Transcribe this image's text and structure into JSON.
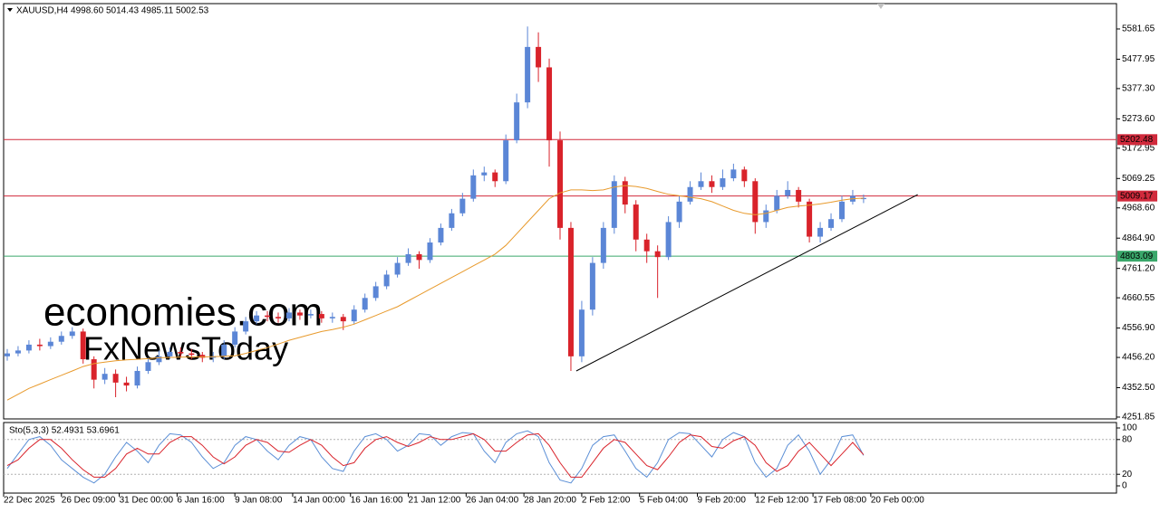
{
  "chart_data": {
    "type": "candlestick",
    "title": "XAUUSD,H4  4998.60 5014.43 4985.11 5002.53",
    "x": [
      1,
      4,
      7,
      10,
      13,
      16,
      19,
      22,
      25,
      28,
      31,
      34,
      37,
      40,
      43,
      46,
      49,
      52,
      55,
      58,
      61,
      64,
      67,
      70,
      73,
      76,
      79,
      82,
      85,
      88,
      91,
      94,
      97,
      100,
      103,
      106,
      109,
      112,
      115,
      118,
      121,
      124,
      127,
      130,
      133,
      136,
      139,
      142,
      145,
      148,
      151,
      154,
      157,
      160,
      163,
      166,
      169,
      172,
      175,
      178,
      181,
      184,
      187,
      190,
      193,
      196,
      199,
      202,
      205,
      208,
      211,
      214,
      217,
      220,
      223,
      226,
      229,
      232,
      235,
      238
    ],
    "open": [
      4460,
      4470,
      4480,
      4500,
      4495,
      4510,
      4530,
      4545,
      4450,
      4380,
      4400,
      4370,
      4360,
      4410,
      4440,
      4460,
      4475,
      4470,
      4465,
      4455,
      4460,
      4500,
      4545,
      4580,
      4600,
      4595,
      4590,
      4610,
      4600,
      4605,
      4590,
      4595,
      4580,
      4620,
      4660,
      4700,
      4740,
      4780,
      4810,
      4790,
      4850,
      4900,
      4950,
      5000,
      5080,
      5090,
      5060,
      5200,
      5330,
      5520,
      5450,
      5200,
      4900,
      4460,
      4620,
      4780,
      4900,
      5060,
      4980,
      4860,
      4820,
      4800,
      4920,
      4990,
      5040,
      5060,
      5040,
      5070,
      5100,
      5060,
      4920,
      4960,
      5010,
      5030,
      4990,
      4870,
      4900,
      4930,
      4990,
      4998.6
    ],
    "high": [
      4485,
      4495,
      4515,
      4520,
      4525,
      4545,
      4560,
      4555,
      4460,
      4420,
      4415,
      4390,
      4425,
      4455,
      4480,
      4490,
      4490,
      4485,
      4475,
      4475,
      4515,
      4560,
      4595,
      4615,
      4615,
      4610,
      4625,
      4620,
      4620,
      4615,
      4610,
      4605,
      4635,
      4675,
      4715,
      4755,
      4800,
      4830,
      4820,
      4865,
      4915,
      4965,
      5020,
      5100,
      5110,
      5100,
      5220,
      5360,
      5590,
      5570,
      5480,
      5230,
      4920,
      4650,
      4800,
      4920,
      5080,
      5075,
      4995,
      4880,
      4840,
      4940,
      5010,
      5060,
      5090,
      5080,
      5100,
      5120,
      5110,
      5070,
      4980,
      5030,
      5060,
      5040,
      5000,
      4920,
      4950,
      5010,
      5030,
      5014.43
    ],
    "low": [
      4445,
      4460,
      4470,
      4480,
      4485,
      4500,
      4520,
      4435,
      4350,
      4365,
      4320,
      4340,
      4350,
      4400,
      4430,
      4450,
      4455,
      4450,
      4440,
      4440,
      4450,
      4490,
      4535,
      4570,
      4580,
      4575,
      4580,
      4585,
      4590,
      4575,
      4575,
      4550,
      4570,
      4610,
      4650,
      4690,
      4730,
      4770,
      4760,
      4780,
      4840,
      4890,
      4940,
      4990,
      5060,
      5040,
      5050,
      5190,
      5310,
      5400,
      5110,
      4860,
      4410,
      4440,
      4600,
      4760,
      4880,
      4950,
      4820,
      4780,
      4660,
      4790,
      4900,
      4980,
      5030,
      5020,
      5030,
      5060,
      5040,
      4880,
      4900,
      4950,
      5000,
      4970,
      4850,
      4850,
      4890,
      4920,
      4980,
      4985.11
    ],
    "close": [
      4470,
      4480,
      4500,
      4495,
      4510,
      4530,
      4545,
      4450,
      4380,
      4400,
      4370,
      4360,
      4410,
      4440,
      4460,
      4475,
      4470,
      4465,
      4455,
      4460,
      4500,
      4545,
      4580,
      4600,
      4595,
      4590,
      4610,
      4600,
      4605,
      4590,
      4595,
      4580,
      4620,
      4660,
      4700,
      4740,
      4780,
      4810,
      4790,
      4850,
      4900,
      4950,
      5000,
      5080,
      5090,
      5060,
      5200,
      5330,
      5520,
      5450,
      5200,
      4900,
      4460,
      4620,
      4780,
      4900,
      5060,
      4980,
      4860,
      4820,
      4800,
      4920,
      4990,
      5040,
      5060,
      5040,
      5070,
      5100,
      5060,
      4920,
      4960,
      5010,
      5030,
      4990,
      4870,
      4900,
      4930,
      4990,
      5010,
      5002.53
    ],
    "up_color": "#5b86d6",
    "down_color": "#d9232b",
    "ma": {
      "color": "#e89a2c",
      "values": [
        4310,
        4330,
        4350,
        4365,
        4380,
        4395,
        4410,
        4425,
        4435,
        4440,
        4445,
        4448,
        4450,
        4452,
        4455,
        4456,
        4457,
        4458,
        4458,
        4459,
        4460,
        4462,
        4470,
        4480,
        4490,
        4502,
        4515,
        4525,
        4535,
        4545,
        4552,
        4560,
        4570,
        4585,
        4600,
        4615,
        4630,
        4650,
        4670,
        4690,
        4710,
        4730,
        4750,
        4770,
        4790,
        4810,
        4840,
        4880,
        4920,
        4960,
        5000,
        5020,
        5030,
        5030,
        5028,
        5030,
        5040,
        5045,
        5042,
        5035,
        5025,
        5015,
        5010,
        5005,
        5000,
        4990,
        4975,
        4960,
        4950,
        4945,
        4950,
        4960,
        4970,
        4975,
        4978,
        4982,
        4988,
        4995,
        5000,
        5002
      ]
    },
    "levels": [
      {
        "value": 5202.48,
        "color": "#d12a3c"
      },
      {
        "value": 5009.17,
        "color": "#d12a3c"
      },
      {
        "value": 4803.09,
        "color": "#3aa86b"
      }
    ],
    "trendline": {
      "x": [
        158.5,
        253
      ],
      "y": [
        4410,
        5014
      ],
      "color": "#000000"
    },
    "xlim": [
      0,
      308
    ],
    "xticks": [
      {
        "value": 0,
        "label": "22 Dec 2025"
      },
      {
        "value": 16,
        "label": "26 Dec 09:00"
      },
      {
        "value": 32,
        "label": "31 Dec 00:00"
      },
      {
        "value": 48,
        "label": "6 Jan 16:00"
      },
      {
        "value": 64,
        "label": "9 Jan 08:00"
      },
      {
        "value": 80,
        "label": "14 Jan 00:00"
      },
      {
        "value": 96,
        "label": "16 Jan 16:00"
      },
      {
        "value": 112,
        "label": "21 Jan 12:00"
      },
      {
        "value": 128,
        "label": "26 Jan 04:00"
      },
      {
        "value": 144,
        "label": "28 Jan 20:00"
      },
      {
        "value": 160,
        "label": "2 Feb 12:00"
      },
      {
        "value": 176,
        "label": "5 Feb 04:00"
      },
      {
        "value": 192,
        "label": "9 Feb 20:00"
      },
      {
        "value": 208,
        "label": "12 Feb 12:00"
      },
      {
        "value": 224,
        "label": "17 Feb 08:00"
      },
      {
        "value": 240,
        "label": "20 Feb 00:00"
      }
    ],
    "ylim": [
      4245.6,
      5668.4
    ],
    "yticks": [
      5581.65,
      5477.95,
      {
        "value": 5377.3,
        "label": "5377.30"
      },
      {
        "value": 5273.6,
        "label": "5273.60"
      },
      5172.95,
      5069.25,
      {
        "value": 4968.6,
        "label": "4968.60"
      },
      {
        "value": 4864.9,
        "label": "4864.90"
      },
      {
        "value": 4761.2,
        "label": "4761.20"
      },
      4660.55,
      {
        "value": 4556.9,
        "label": "4556.90"
      },
      {
        "value": 4456.2,
        "label": "4456.20"
      },
      {
        "value": 4352.5,
        "label": "4352.50"
      },
      4251.85
    ],
    "watermark": [
      "economies.com",
      "FxNewsToday"
    ],
    "oscillator": {
      "title": "Sto(5,3,3) 52.4931 53.6961",
      "ylim": [
        -12.5,
        109.4
      ],
      "yticks": [
        100,
        80,
        20,
        0
      ],
      "levels": [
        80,
        20
      ],
      "series": [
        {
          "color": "#5b8fd6",
          "values": [
            30,
            55,
            80,
            85,
            70,
            45,
            30,
            15,
            5,
            20,
            50,
            75,
            60,
            40,
            70,
            90,
            88,
            75,
            50,
            30,
            40,
            70,
            85,
            80,
            60,
            45,
            70,
            85,
            80,
            50,
            30,
            25,
            60,
            85,
            90,
            80,
            60,
            70,
            90,
            88,
            70,
            85,
            92,
            90,
            60,
            40,
            75,
            90,
            95,
            85,
            40,
            10,
            5,
            30,
            70,
            85,
            88,
            60,
            30,
            15,
            40,
            80,
            92,
            90,
            70,
            50,
            80,
            92,
            85,
            40,
            15,
            30,
            70,
            88,
            60,
            20,
            45,
            85,
            88,
            52.4931
          ]
        },
        {
          "color": "#d9232b",
          "values": [
            35,
            45,
            65,
            80,
            80,
            65,
            45,
            28,
            15,
            15,
            30,
            55,
            65,
            55,
            55,
            75,
            85,
            85,
            70,
            50,
            38,
            50,
            70,
            80,
            75,
            60,
            58,
            70,
            80,
            70,
            50,
            35,
            40,
            65,
            80,
            85,
            75,
            68,
            75,
            85,
            80,
            80,
            85,
            90,
            80,
            60,
            60,
            75,
            88,
            90,
            70,
            40,
            15,
            15,
            40,
            65,
            80,
            75,
            55,
            35,
            28,
            50,
            75,
            88,
            85,
            68,
            65,
            78,
            85,
            70,
            40,
            25,
            35,
            60,
            75,
            55,
            35,
            55,
            75,
            53.6961
          ]
        }
      ]
    }
  }
}
